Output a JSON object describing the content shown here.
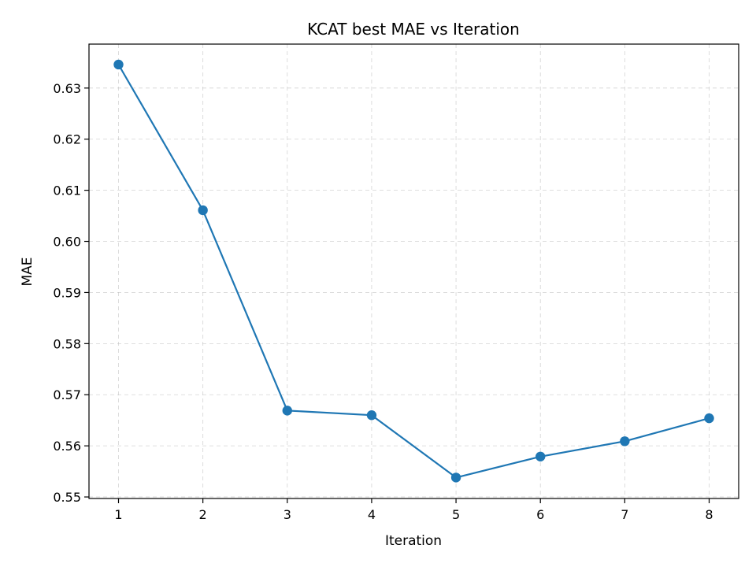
{
  "chart_data": {
    "type": "line",
    "title": "KCAT best MAE vs Iteration",
    "xlabel": "Iteration",
    "ylabel": "MAE",
    "x": [
      1,
      2,
      3,
      4,
      5,
      6,
      7,
      8
    ],
    "series": [
      {
        "values": [
          0.6346,
          0.6061,
          0.5669,
          0.566,
          0.5538,
          0.5579,
          0.5609,
          0.5654
        ],
        "color": "#1f77b4",
        "marker": "circle"
      }
    ],
    "xlim": [
      0.65,
      8.35
    ],
    "ylim": [
      0.5497,
      0.6386
    ],
    "xticks": [
      1,
      2,
      3,
      4,
      5,
      6,
      7,
      8
    ],
    "xtick_labels": [
      "1",
      "2",
      "3",
      "4",
      "5",
      "6",
      "7",
      "8"
    ],
    "yticks": [
      0.55,
      0.56,
      0.57,
      0.58,
      0.59,
      0.6,
      0.61,
      0.62,
      0.63
    ],
    "ytick_labels": [
      "0.55",
      "0.56",
      "0.57",
      "0.58",
      "0.59",
      "0.60",
      "0.61",
      "0.62",
      "0.63"
    ],
    "grid": true,
    "grid_style": "dashed",
    "legend": false
  }
}
